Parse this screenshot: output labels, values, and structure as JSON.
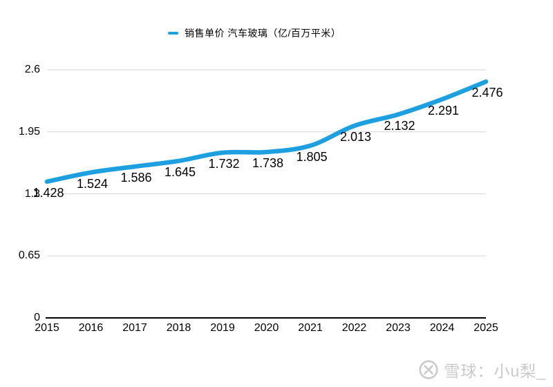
{
  "chart_data": {
    "type": "line",
    "legend": "销售单价 汽车玻璃（亿/百万平米）",
    "categories": [
      "2015",
      "2016",
      "2017",
      "2018",
      "2019",
      "2020",
      "2021",
      "2022",
      "2023",
      "2024",
      "2025"
    ],
    "values": [
      1.428,
      1.524,
      1.586,
      1.645,
      1.732,
      1.738,
      1.805,
      2.013,
      2.132,
      2.291,
      2.476
    ],
    "value_labels": [
      "1.428",
      "1.524",
      "1.586",
      "1.645",
      "1.732",
      "1.738",
      "1.805",
      "2.013",
      "2.132",
      "2.291",
      "2.476"
    ],
    "y_ticks": [
      "2.6",
      "1.95",
      "1.3",
      "0.65",
      "0"
    ],
    "y_tick_values": [
      2.6,
      1.95,
      1.3,
      0.65,
      0
    ],
    "ylim": [
      0,
      2.6
    ],
    "grid": true,
    "legend_position": "top",
    "line_color": "#1E9FE0",
    "gridline_color": "#d5d5d5",
    "axis_color": "#000000"
  },
  "watermark": {
    "text": "雪球：小u梨_",
    "icon": "xueqiu-logo",
    "color": "#c9c9c9"
  }
}
